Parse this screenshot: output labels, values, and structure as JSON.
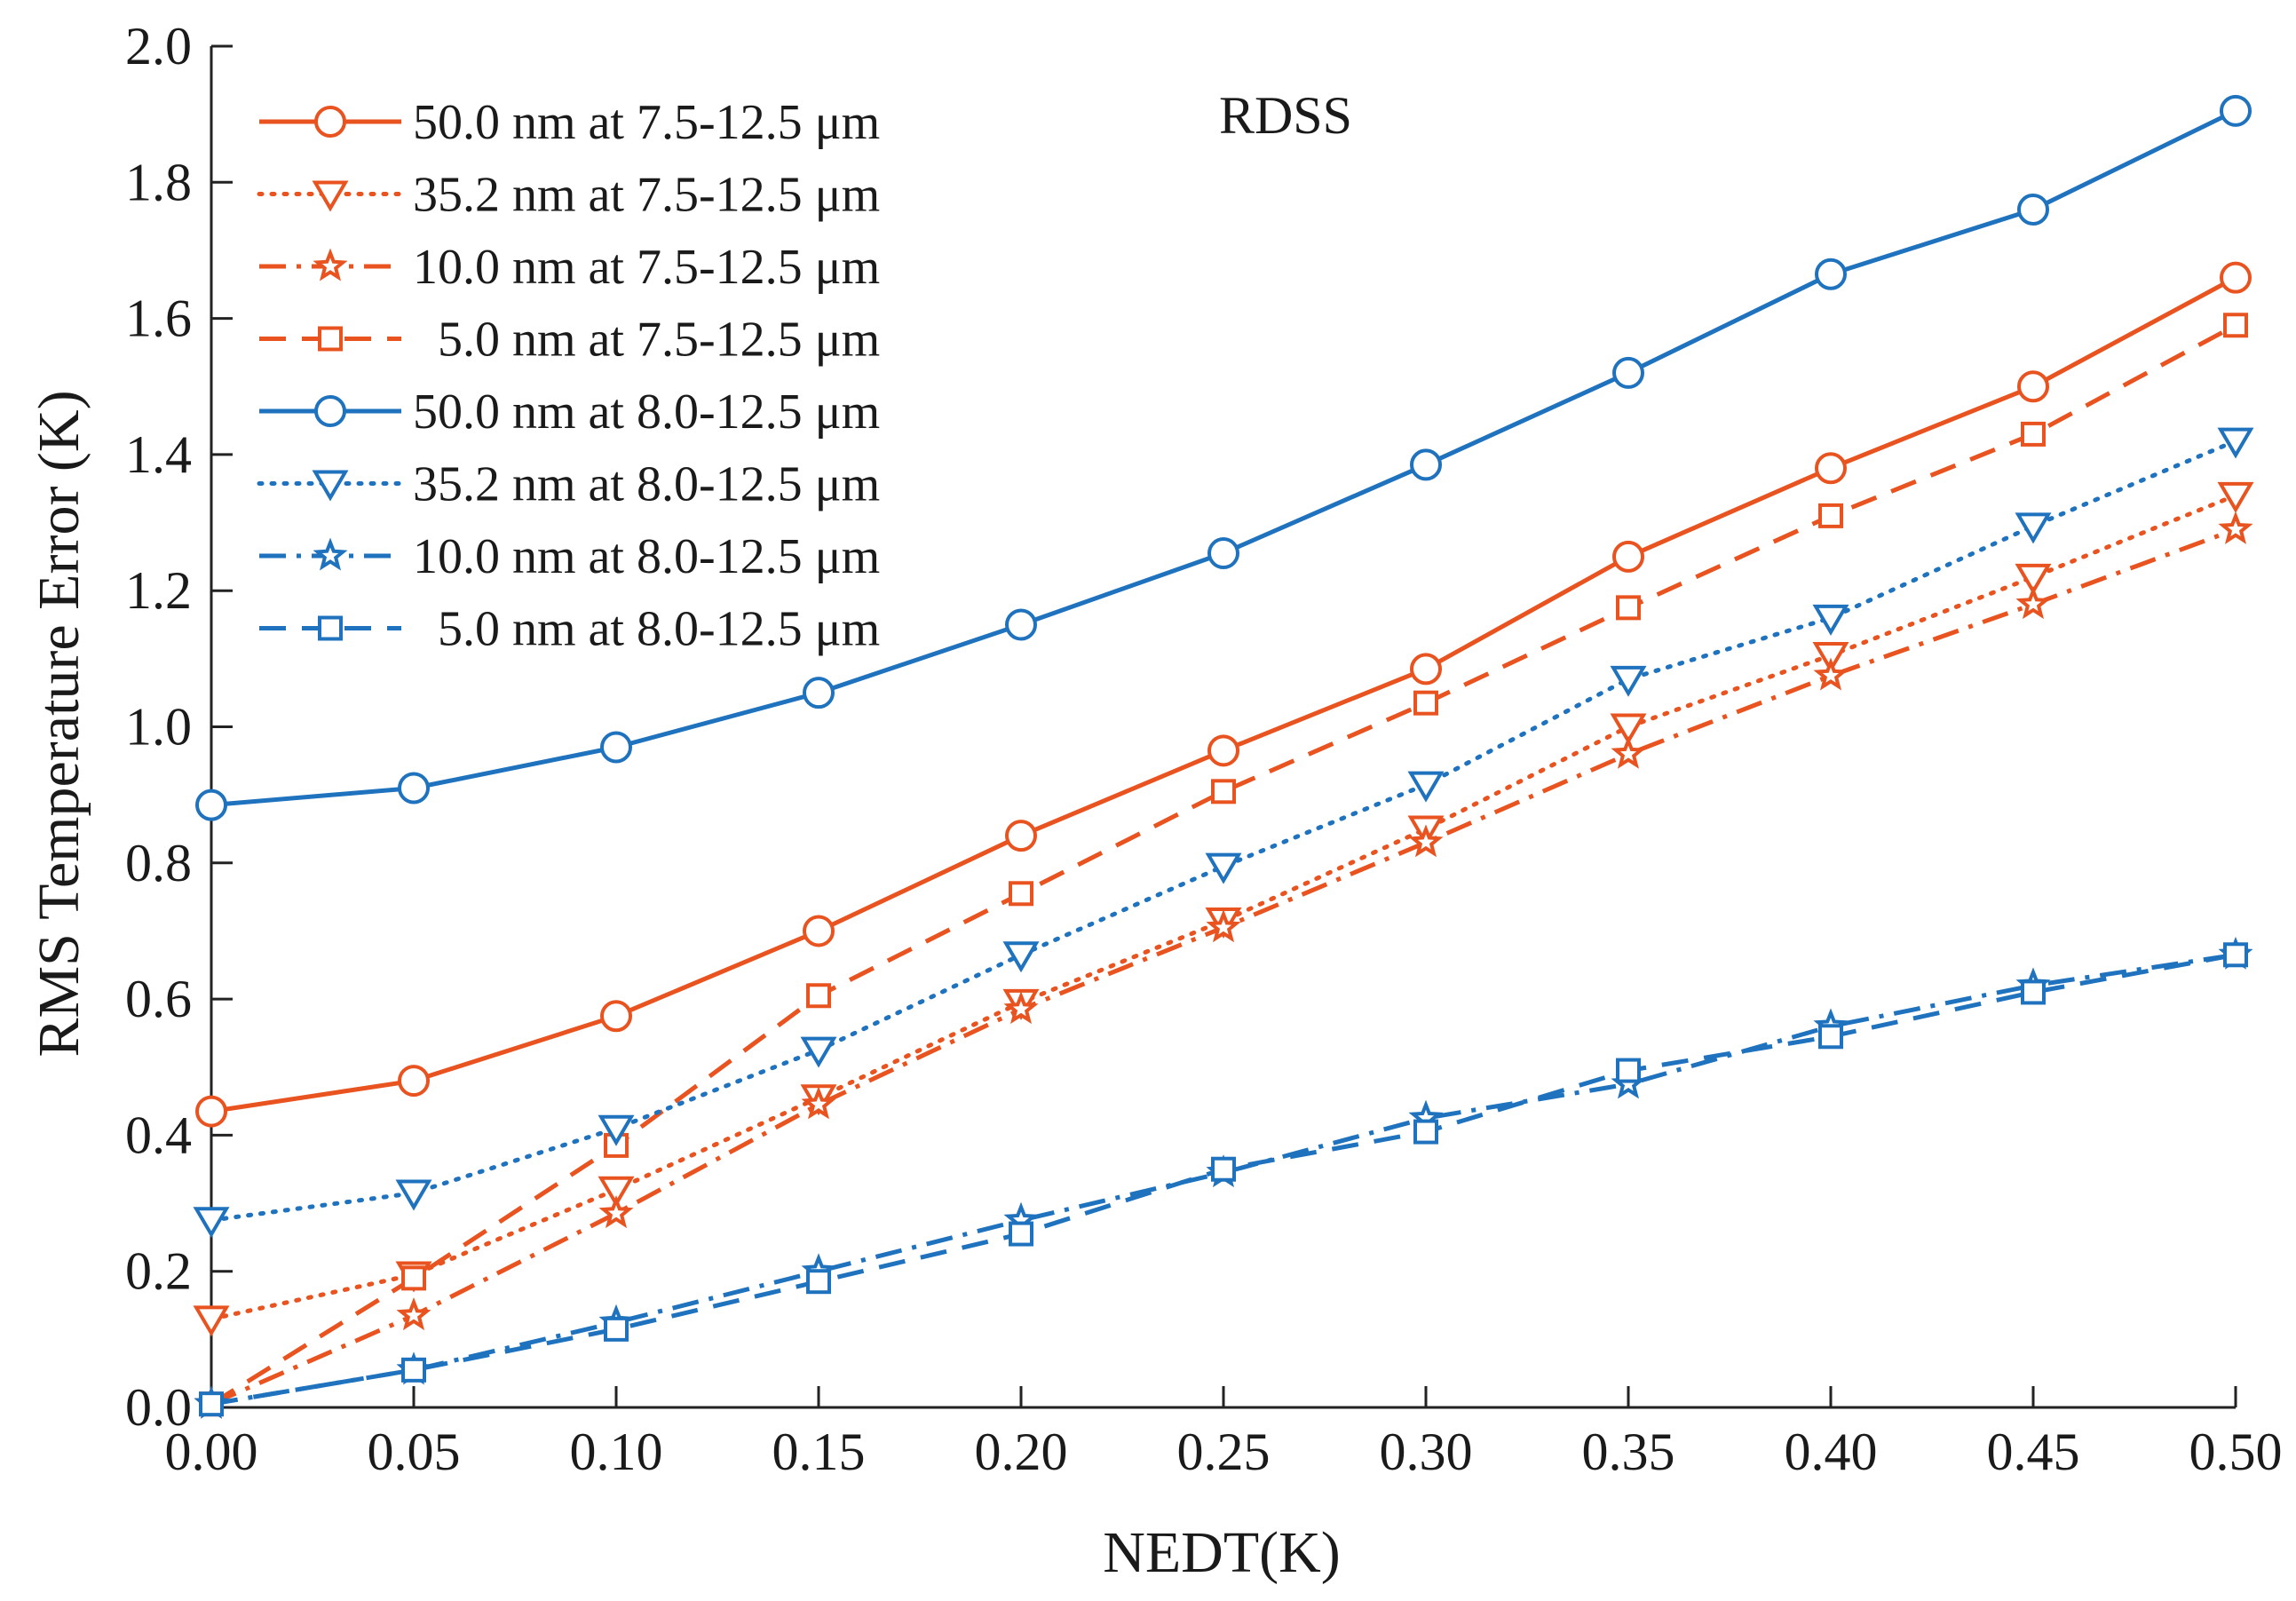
{
  "chart_data": {
    "type": "line",
    "title": "",
    "annotation": "RDSS",
    "xlabel": "NEDT(K)",
    "ylabel": "RMS Temperature Error (K)",
    "xlim": [
      0,
      0.5
    ],
    "ylim": [
      0,
      2.0
    ],
    "grid": false,
    "legend_position": "top-left",
    "x": [
      0.0,
      0.05,
      0.1,
      0.15,
      0.2,
      0.25,
      0.3,
      0.35,
      0.4,
      0.45,
      0.5
    ],
    "x_ticks": [
      "0.00",
      "0.05",
      "0.10",
      "0.15",
      "0.20",
      "0.25",
      "0.30",
      "0.35",
      "0.40",
      "0.45",
      "0.50"
    ],
    "y_ticks": [
      "0.0",
      "0.2",
      "0.4",
      "0.6",
      "0.8",
      "1.0",
      "1.2",
      "1.4",
      "1.6",
      "1.8",
      "2.0"
    ],
    "series": [
      {
        "name": "50.0 nm at 7.5-12.5 μm",
        "color": "#E8531F",
        "dash": "solid",
        "marker": "circle",
        "values": [
          0.435,
          0.48,
          0.575,
          0.7,
          0.84,
          0.965,
          1.085,
          1.25,
          1.38,
          1.5,
          1.66
        ]
      },
      {
        "name": "35.2 nm at 7.5-12.5 μm",
        "color": "#E8531F",
        "dash": "dotted",
        "marker": "triangle-down",
        "values": [
          0.13,
          0.195,
          0.32,
          0.455,
          0.595,
          0.715,
          0.85,
          1.0,
          1.105,
          1.22,
          1.34
        ]
      },
      {
        "name": "10.0 nm at 7.5-12.5 μm",
        "color": "#E8531F",
        "dash": "dashdot",
        "marker": "star",
        "values": [
          0.005,
          0.135,
          0.285,
          0.445,
          0.585,
          0.705,
          0.83,
          0.96,
          1.075,
          1.18,
          1.29
        ]
      },
      {
        "name": "5.0 nm at 7.5-12.5 μm",
        "color": "#E8531F",
        "dash": "dashed",
        "marker": "square",
        "values": [
          0.005,
          0.19,
          0.385,
          0.605,
          0.755,
          0.905,
          1.035,
          1.175,
          1.31,
          1.43,
          1.59
        ]
      },
      {
        "name": "50.0 nm at 8.0-12.5 μm",
        "color": "#1F72BD",
        "dash": "solid",
        "marker": "circle",
        "values": [
          0.885,
          0.91,
          0.97,
          1.05,
          1.15,
          1.255,
          1.385,
          1.52,
          1.665,
          1.76,
          1.905
        ]
      },
      {
        "name": "35.2 nm at 8.0-12.5 μm",
        "color": "#1F72BD",
        "dash": "dotted",
        "marker": "triangle-down",
        "values": [
          0.275,
          0.315,
          0.41,
          0.525,
          0.665,
          0.795,
          0.915,
          1.07,
          1.16,
          1.295,
          1.42
        ]
      },
      {
        "name": "10.0 nm at 8.0-12.5 μm",
        "color": "#1F72BD",
        "dash": "dashdot",
        "marker": "star",
        "values": [
          0.005,
          0.055,
          0.125,
          0.2,
          0.275,
          0.345,
          0.425,
          0.475,
          0.56,
          0.62,
          0.665
        ]
      },
      {
        "name": "5.0 nm at 8.0-12.5 μm",
        "color": "#1F72BD",
        "dash": "dashed",
        "marker": "square",
        "values": [
          0.005,
          0.055,
          0.115,
          0.185,
          0.255,
          0.35,
          0.405,
          0.495,
          0.545,
          0.61,
          0.665
        ]
      }
    ]
  }
}
